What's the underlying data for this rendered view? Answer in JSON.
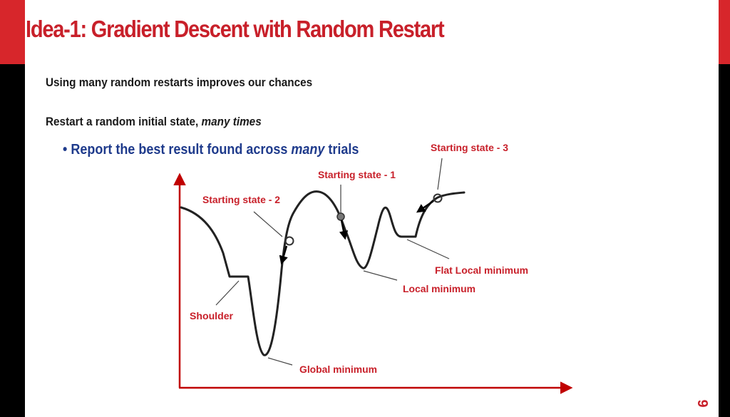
{
  "slide": {
    "title": "Idea-1: Gradient Descent with Random Restart",
    "line1": "Using many random restarts improves our chances",
    "line2_prefix": "Restart a random initial state, ",
    "line2_emph": "many times",
    "bullet_prefix": "Report the best result found across ",
    "bullet_emph": "many",
    "bullet_suffix": " trials",
    "page_number": "9"
  },
  "diagram": {
    "labels": {
      "starting_state_1": "Starting state - 1",
      "starting_state_2": "Starting state - 2",
      "starting_state_3": "Starting state - 3",
      "flat_local_minimum": "Flat Local minimum",
      "local_minimum": "Local minimum",
      "shoulder": "Shoulder",
      "global_minimum": "Global minimum"
    }
  },
  "colors": {
    "brand_red": "#c8202a",
    "bullet_blue": "#1f3b8c",
    "axis_red": "#c00000",
    "curve": "#222222"
  }
}
